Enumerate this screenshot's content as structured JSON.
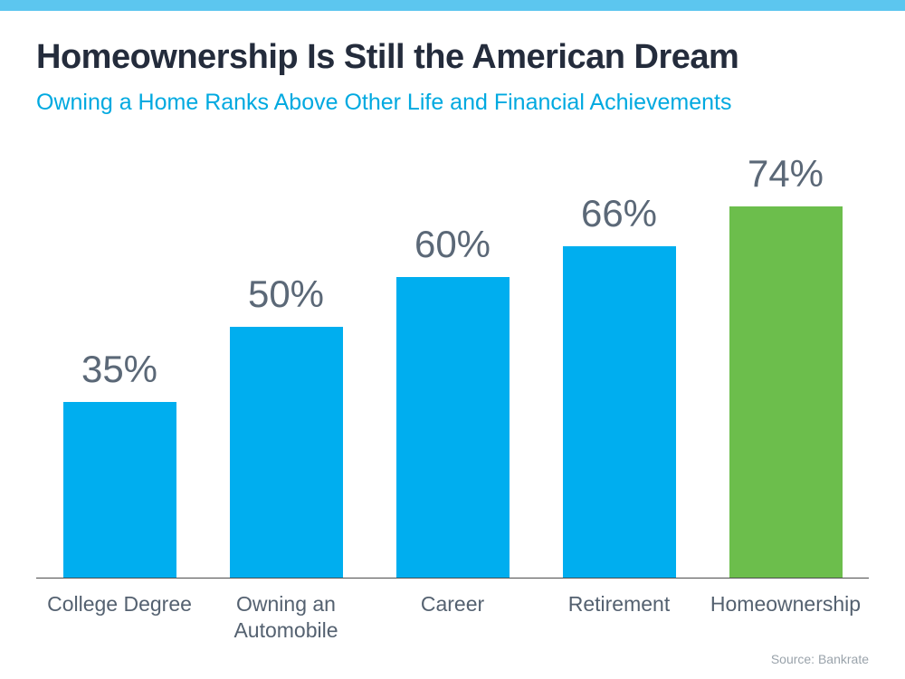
{
  "chart_data": {
    "type": "bar",
    "title": "Homeownership Is Still the American Dream",
    "subtitle": "Owning a Home Ranks Above Other Life and Financial Achievements",
    "categories": [
      "College Degree",
      "Owning an\nAutomobile",
      "Career",
      "Retirement",
      "Homeownership"
    ],
    "values": [
      35,
      50,
      60,
      66,
      74
    ],
    "value_labels": [
      "35%",
      "50%",
      "60%",
      "66%",
      "74%"
    ],
    "bar_colors": [
      "#00aeef",
      "#00aeef",
      "#00aeef",
      "#00aeef",
      "#6cbe4c"
    ],
    "ylim": [
      0,
      100
    ],
    "grid": false,
    "legend": false,
    "source": "Source: Bankrate",
    "colors": {
      "top_strip": "#5cc6ef",
      "title": "#242c3c",
      "subtitle": "#00a9e0",
      "value_label": "#5b6877",
      "category_label": "#546170"
    }
  }
}
